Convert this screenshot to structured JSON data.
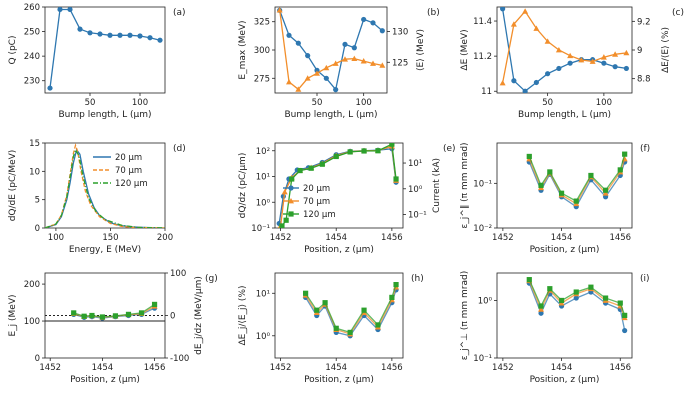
{
  "colors": {
    "blue": "#2e77b0",
    "orange": "#f28e2b",
    "green": "#2ca02c",
    "black": "#222222"
  },
  "chart_data": [
    {
      "id": "a",
      "type": "line",
      "panel_label": "(a)",
      "xlabel": "Bump length, L (µm)",
      "ylabel": "Q (pC)",
      "xlim": [
        5,
        125
      ],
      "ylim": [
        225,
        260
      ],
      "xticks": [
        50,
        100
      ],
      "yticks": [
        230,
        240,
        250,
        260
      ],
      "series": [
        {
          "name": "Q",
          "color": "blue",
          "marker": "circle",
          "x": [
            10,
            20,
            30,
            40,
            50,
            60,
            70,
            80,
            90,
            100,
            110,
            120
          ],
          "y": [
            227,
            259,
            259,
            251,
            249.5,
            249,
            248.5,
            248.5,
            248.5,
            248.2,
            247.5,
            246.5
          ]
        }
      ]
    },
    {
      "id": "b",
      "type": "line",
      "panel_label": "(b)",
      "xlabel": "Bump length, L (µm)",
      "ylabel": "E_max (MeV)",
      "ylabel_right": "⟨E⟩ (MeV)",
      "xlim": [
        5,
        125
      ],
      "ylim": [
        262,
        338
      ],
      "yticks": [
        275,
        300,
        325
      ],
      "xticks": [
        50,
        100
      ],
      "ylim_right": [
        120,
        134
      ],
      "yticks_right": [
        125,
        130
      ],
      "series": [
        {
          "name": "E_max",
          "color": "blue",
          "marker": "circle",
          "axis": "left",
          "x": [
            10,
            20,
            30,
            40,
            50,
            60,
            70,
            80,
            90,
            100,
            110,
            120
          ],
          "y": [
            335,
            313,
            306,
            295,
            282,
            275,
            265,
            305,
            302,
            327,
            324,
            317
          ]
        },
        {
          "name": "⟨E⟩",
          "color": "orange",
          "marker": "triangle",
          "axis": "right",
          "x": [
            10,
            20,
            30,
            40,
            50,
            60,
            70,
            80,
            90,
            100,
            110,
            120
          ],
          "y": [
            133.5,
            121.8,
            120.6,
            122.4,
            123.2,
            124.1,
            124.8,
            125.5,
            125.6,
            125.2,
            124.8,
            124.5
          ]
        }
      ]
    },
    {
      "id": "c",
      "type": "line",
      "panel_label": "(c)",
      "xlabel": "Bump length, L (µm)",
      "ylabel": "ΔE (MeV)",
      "ylabel_right": "ΔE/⟨E⟩ (%)",
      "xlim": [
        5,
        125
      ],
      "ylim": [
        10.99,
        11.48
      ],
      "yticks": [
        11.0,
        11.2,
        11.4
      ],
      "xticks": [
        50,
        100
      ],
      "ylim_right": [
        8.7,
        9.3
      ],
      "yticks_right": [
        8.8,
        9.0,
        9.2
      ],
      "series": [
        {
          "name": "ΔE",
          "color": "blue",
          "marker": "circle",
          "axis": "left",
          "x": [
            10,
            20,
            30,
            40,
            50,
            60,
            70,
            80,
            90,
            100,
            110,
            120
          ],
          "y": [
            11.47,
            11.06,
            11.0,
            11.05,
            11.1,
            11.13,
            11.16,
            11.18,
            11.18,
            11.16,
            11.14,
            11.13
          ]
        },
        {
          "name": "ΔE/⟨E⟩",
          "color": "orange",
          "marker": "triangle",
          "axis": "right",
          "x": [
            10,
            20,
            30,
            40,
            50,
            60,
            70,
            80,
            90,
            100,
            110,
            120
          ],
          "y": [
            8.77,
            9.18,
            9.27,
            9.15,
            9.06,
            9.0,
            8.96,
            8.93,
            8.92,
            8.95,
            8.97,
            8.98
          ]
        }
      ]
    },
    {
      "id": "d",
      "type": "line",
      "panel_label": "(d)",
      "xlabel": "Energy, E (MeV)",
      "ylabel": "dQ/dE (pC/MeV)",
      "xlim": [
        90,
        200
      ],
      "ylim": [
        0,
        15
      ],
      "xticks": [
        100,
        150,
        200
      ],
      "yticks": [
        0,
        5,
        10,
        15
      ],
      "legend": [
        "20 µm",
        "70 µm",
        "120 µm"
      ],
      "series": [
        {
          "name": "20 µm",
          "color": "blue",
          "dash": "solid",
          "x": [
            90,
            100,
            105,
            110,
            113,
            116,
            119,
            122,
            125,
            130,
            135,
            140,
            150,
            160,
            170,
            180,
            200
          ],
          "y": [
            0,
            0.6,
            2.0,
            5.0,
            8.0,
            11.5,
            13.8,
            13.0,
            10.0,
            6.0,
            3.6,
            2.2,
            0.9,
            0.4,
            0.2,
            0.1,
            0
          ]
        },
        {
          "name": "70 µm",
          "color": "orange",
          "dash": "dashed",
          "x": [
            90,
            100,
            105,
            110,
            113,
            116,
            118,
            120,
            123,
            127,
            132,
            140,
            150,
            160,
            170,
            200
          ],
          "y": [
            0,
            0.7,
            2.3,
            5.8,
            9.5,
            13.2,
            14.6,
            13.5,
            10.0,
            6.5,
            4.0,
            2.0,
            0.8,
            0.3,
            0.1,
            0
          ]
        },
        {
          "name": "120 µm",
          "color": "green",
          "dash": "dashdot",
          "x": [
            90,
            100,
            105,
            110,
            113,
            116,
            118,
            121,
            125,
            130,
            137,
            145,
            160,
            175,
            200
          ],
          "y": [
            0,
            0.7,
            2.2,
            5.5,
            9.0,
            12.6,
            13.8,
            12.8,
            9.0,
            5.3,
            2.8,
            1.5,
            0.5,
            0.1,
            0
          ]
        }
      ]
    },
    {
      "id": "e",
      "type": "line",
      "panel_label": "(e)",
      "xlabel": "Position, z (µm)",
      "ylabel": "dQ/dz (pC/µm)",
      "ylabel_right": "Current (kA)",
      "xlim": [
        1451.8,
        1456.4
      ],
      "ylim_log": [
        0.1,
        200
      ],
      "yticks_log": [
        0.1,
        1,
        10,
        100
      ],
      "ytick_labels": [
        "10⁻¹",
        "10⁰",
        "10¹",
        "10²"
      ],
      "xticks": [
        1452,
        1454,
        1456
      ],
      "ylim_right_log": [
        0.03,
        60
      ],
      "yticks_right_log": [
        0.1,
        1,
        10
      ],
      "ytick_right_labels": [
        "10⁻¹",
        "10⁰",
        "10¹"
      ],
      "legend": [
        "20 µm",
        "70 µm",
        "120 µm"
      ],
      "series": [
        {
          "name": "20 µm",
          "color": "blue",
          "marker": "circle",
          "x": [
            1451.95,
            1452.1,
            1452.3,
            1452.6,
            1453.0,
            1453.5,
            1454.0,
            1454.5,
            1455.0,
            1455.5,
            1456.0,
            1456.15
          ],
          "y": [
            0.15,
            1.7,
            8,
            18,
            22,
            35,
            70,
            95,
            100,
            105,
            120,
            6
          ]
        },
        {
          "name": "70 µm",
          "color": "orange",
          "marker": "triangle",
          "x": [
            1452.0,
            1452.15,
            1452.4,
            1452.7,
            1453.1,
            1453.5,
            1454.0,
            1454.5,
            1455.0,
            1455.5,
            1456.0,
            1456.15
          ],
          "y": [
            0.12,
            2.5,
            9,
            17,
            22,
            32,
            65,
            92,
            100,
            102,
            150,
            7
          ]
        },
        {
          "name": "120 µm",
          "color": "green",
          "marker": "square",
          "x": [
            1452.05,
            1452.2,
            1452.4,
            1452.7,
            1453.1,
            1453.5,
            1454.0,
            1454.5,
            1455.0,
            1455.5,
            1456.0,
            1456.15
          ],
          "y": [
            0.12,
            0.2,
            8,
            17,
            21,
            30,
            60,
            90,
            98,
            100,
            180,
            8
          ]
        }
      ]
    },
    {
      "id": "f",
      "type": "line",
      "panel_label": "(f)",
      "xlabel": "Position, z (µm)",
      "ylabel": "ε_j^∥ (π mm mrad)",
      "xlim": [
        1451.8,
        1456.4
      ],
      "ylim_log": [
        0.01,
        0.8
      ],
      "yticks_log": [
        0.01,
        0.1
      ],
      "ytick_labels": [
        "10⁻²",
        "10⁻¹"
      ],
      "xticks": [
        1452,
        1454,
        1456
      ],
      "series": [
        {
          "name": "20 µm",
          "color": "blue",
          "x": [
            1452.9,
            1453.3,
            1453.6,
            1454.0,
            1454.5,
            1455.0,
            1455.5,
            1456.0,
            1456.15
          ],
          "y": [
            0.3,
            0.07,
            0.16,
            0.05,
            0.03,
            0.12,
            0.05,
            0.15,
            0.3
          ]
        },
        {
          "name": "70 µm",
          "color": "orange",
          "x": [
            1452.9,
            1453.3,
            1453.6,
            1454.0,
            1454.5,
            1455.0,
            1455.5,
            1456.0,
            1456.15
          ],
          "y": [
            0.35,
            0.08,
            0.17,
            0.055,
            0.035,
            0.14,
            0.06,
            0.18,
            0.35
          ]
        },
        {
          "name": "120 µm",
          "color": "green",
          "x": [
            1452.9,
            1453.3,
            1453.6,
            1454.0,
            1454.5,
            1455.0,
            1455.5,
            1456.0,
            1456.15
          ],
          "y": [
            0.4,
            0.09,
            0.18,
            0.06,
            0.04,
            0.15,
            0.07,
            0.2,
            0.45
          ]
        }
      ]
    },
    {
      "id": "g",
      "type": "line",
      "panel_label": "(g)",
      "xlabel": "Position, z (µm)",
      "ylabel": "E_j (MeV)",
      "ylabel_right": "dE_j/dz (MeV/µm)",
      "xlim": [
        1451.8,
        1456.4
      ],
      "ylim": [
        0,
        230
      ],
      "yticks": [
        0,
        100,
        200
      ],
      "xticks": [
        1452,
        1454,
        1456
      ],
      "ylim_right": [
        -100,
        100
      ],
      "yticks_right": [
        -100,
        0,
        100
      ],
      "series": [
        {
          "name": "20 µm",
          "color": "blue",
          "x": [
            1452.9,
            1453.3,
            1453.6,
            1454.0,
            1454.5,
            1455.0,
            1455.5,
            1456.0
          ],
          "y": [
            118,
            110,
            112,
            108,
            112,
            115,
            118,
            135
          ]
        },
        {
          "name": "70 µm",
          "color": "orange",
          "x": [
            1452.9,
            1453.3,
            1453.6,
            1454.0,
            1454.5,
            1455.0,
            1455.5,
            1456.0
          ],
          "y": [
            120,
            112,
            114,
            110,
            113,
            117,
            120,
            140
          ]
        },
        {
          "name": "120 µm",
          "color": "green",
          "x": [
            1452.9,
            1453.3,
            1453.6,
            1454.0,
            1454.5,
            1455.0,
            1455.5,
            1456.0
          ],
          "y": [
            122,
            113,
            115,
            111,
            114,
            118,
            122,
            145
          ]
        }
      ]
    },
    {
      "id": "h",
      "type": "line",
      "panel_label": "(h)",
      "xlabel": "Position, z (µm)",
      "ylabel": "ΔE_j/⟨E_j⟩ (%)",
      "xlim": [
        1451.8,
        1456.4
      ],
      "ylim_log": [
        0.3,
        30
      ],
      "yticks_log": [
        1,
        10
      ],
      "ytick_labels": [
        "10⁰",
        "10¹"
      ],
      "xticks": [
        1452,
        1454,
        1456
      ],
      "series": [
        {
          "name": "20 µm",
          "color": "blue",
          "x": [
            1452.9,
            1453.3,
            1453.6,
            1454.0,
            1454.5,
            1455.0,
            1455.5,
            1456.0,
            1456.15
          ],
          "y": [
            8,
            3,
            5,
            1.2,
            1.0,
            3,
            1.4,
            6,
            12
          ]
        },
        {
          "name": "70 µm",
          "color": "orange",
          "x": [
            1452.9,
            1453.3,
            1453.6,
            1454.0,
            1454.5,
            1455.0,
            1455.5,
            1456.0,
            1456.15
          ],
          "y": [
            9,
            3.5,
            5.5,
            1.4,
            1.1,
            3.5,
            1.6,
            7,
            14
          ]
        },
        {
          "name": "120 µm",
          "color": "green",
          "x": [
            1452.9,
            1453.3,
            1453.6,
            1454.0,
            1454.5,
            1455.0,
            1455.5,
            1456.0,
            1456.15
          ],
          "y": [
            10,
            4,
            6,
            1.5,
            1.2,
            4,
            1.8,
            8,
            16
          ]
        }
      ]
    },
    {
      "id": "i",
      "type": "line",
      "panel_label": "(i)",
      "xlabel": "Position, z (µm)",
      "ylabel": "ε_j^⊥ (π mm mrad)",
      "xlim": [
        1451.8,
        1456.4
      ],
      "ylim_log": [
        0.1,
        3
      ],
      "yticks_log": [
        0.1,
        1
      ],
      "ytick_labels": [
        "10⁻¹",
        "10⁰"
      ],
      "xticks": [
        1452,
        1454,
        1456
      ],
      "series": [
        {
          "name": "20 µm",
          "color": "blue",
          "x": [
            1452.9,
            1453.3,
            1453.6,
            1454.0,
            1454.5,
            1455.0,
            1455.5,
            1456.0,
            1456.15
          ],
          "y": [
            2.0,
            0.6,
            1.3,
            0.8,
            1.1,
            1.4,
            0.9,
            0.7,
            0.3
          ]
        },
        {
          "name": "70 µm",
          "color": "orange",
          "x": [
            1452.9,
            1453.3,
            1453.6,
            1454.0,
            1454.5,
            1455.0,
            1455.5,
            1456.0,
            1456.15
          ],
          "y": [
            2.2,
            0.7,
            1.5,
            0.9,
            1.3,
            1.6,
            1.0,
            0.8,
            0.5
          ]
        },
        {
          "name": "120 µm",
          "color": "green",
          "x": [
            1452.9,
            1453.3,
            1453.6,
            1454.0,
            1454.5,
            1455.0,
            1455.5,
            1456.0,
            1456.15
          ],
          "y": [
            2.3,
            0.8,
            1.6,
            1.0,
            1.4,
            1.7,
            1.1,
            0.9,
            0.55
          ]
        }
      ]
    }
  ]
}
